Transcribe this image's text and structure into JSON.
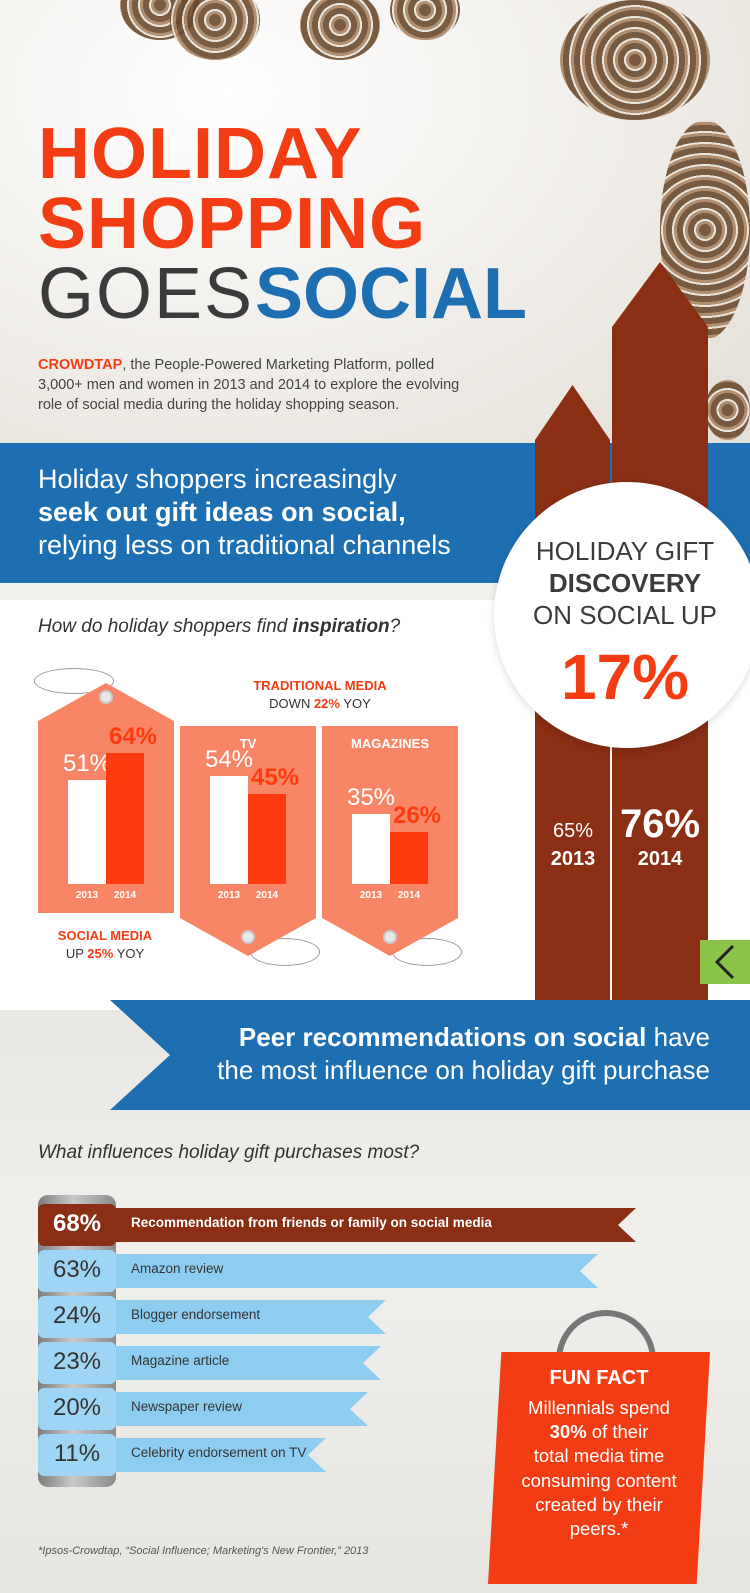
{
  "title": {
    "line1": "HOLIDAY",
    "line2": "SHOPPING",
    "line3a": "GOES",
    "line3b": "SOCIAL"
  },
  "intro": {
    "brand": "CROWDTAP",
    "text": ", the People-Powered Marketing Platform, polled 3,000+ men and women in 2013 and 2014 to explore the evolving role of social media during the holiday shopping season."
  },
  "banner1": {
    "line1": "Holiday shoppers increasingly",
    "line2": "seek out gift ideas on social,",
    "line3": "relying less on traditional channels"
  },
  "discovery": {
    "line1": "HOLIDAY GIFT",
    "line2": "DISCOVERY",
    "line3": "ON SOCIAL UP",
    "pct": "17%",
    "y2013_pct": "65%",
    "y2013_label": "2013",
    "y2014_pct": "76%",
    "y2014_label": "2014"
  },
  "inspiration": {
    "question": "How do holiday shoppers find ",
    "question_em": "inspiration",
    "question_end": "?",
    "traditional_label": "TRADITIONAL MEDIA",
    "traditional_down": "DOWN ",
    "traditional_pct": "22%",
    "traditional_yoy": " YOY",
    "social_label": "SOCIAL MEDIA",
    "social_up": "UP ",
    "social_pct": "25%",
    "social_yoy": " YOY"
  },
  "banner2": {
    "bold": "Peer recommendations on social",
    "rest": " have",
    "line2": "the most influence on holiday gift purchase"
  },
  "influence_question": "What influences holiday gift purchases most?",
  "fun_fact": {
    "title": "FUN FACT",
    "l1": "Millennials spend",
    "l2_bold": "30%",
    "l2": " of their",
    "l3": "total media time",
    "l4": "consuming content",
    "l5": "created by their",
    "l6": "peers.*"
  },
  "footnote": "*Ipsos-Crowdtap, “Social Influence; Marketing's New Frontier,” 2013",
  "colors": {
    "orange": "#f23d14",
    "blue": "#1d6fb2",
    "brown": "#8a2e14",
    "tag": "#f78566",
    "lightblue": "#8fcdf0"
  },
  "chart_data": [
    {
      "type": "bar",
      "title": "SOCIAL MEDIA",
      "categories": [
        "2013",
        "2014"
      ],
      "values": [
        51,
        64
      ],
      "labels": [
        "51%",
        "64%"
      ],
      "ylim": [
        0,
        100
      ]
    },
    {
      "type": "bar",
      "title": "TV",
      "categories": [
        "2013",
        "2014"
      ],
      "values": [
        54,
        45
      ],
      "labels": [
        "54%",
        "45%"
      ],
      "ylim": [
        0,
        100
      ]
    },
    {
      "type": "bar",
      "title": "MAGAZINES",
      "categories": [
        "2013",
        "2014"
      ],
      "values": [
        35,
        26
      ],
      "labels": [
        "35%",
        "26%"
      ],
      "ylim": [
        0,
        100
      ]
    },
    {
      "type": "bar",
      "title": "",
      "categories": [
        "2013",
        "2014"
      ],
      "values": [
        65,
        76
      ],
      "labels": [
        "65%",
        "76%"
      ]
    },
    {
      "type": "bar",
      "title": "",
      "categories": [
        "Recommendation from friends or family on social media",
        "Amazon review",
        "Blogger endorsement",
        "Magazine article",
        "Newspaper review",
        "Celebrity endorsement on TV"
      ],
      "values": [
        68,
        63,
        24,
        23,
        20,
        11
      ],
      "labels": [
        "68%",
        "63%",
        "24%",
        "23%",
        "20%",
        "11%"
      ]
    }
  ]
}
